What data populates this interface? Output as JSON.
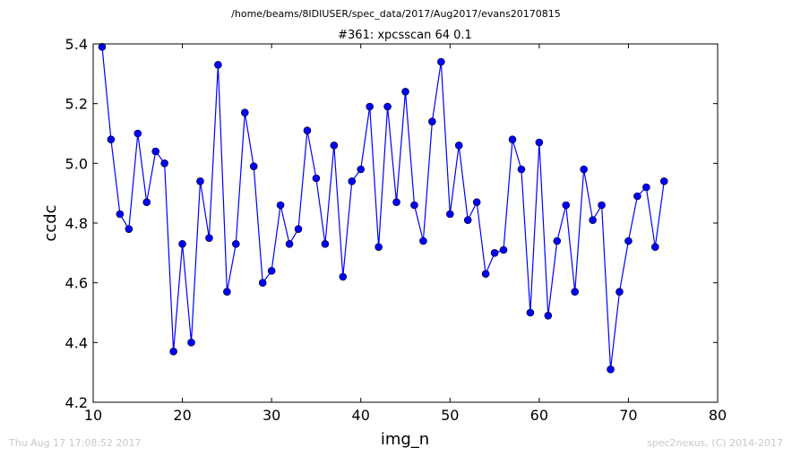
{
  "chart_data": {
    "type": "line",
    "suptitle": "/home/beams/8IDIUSER/spec_data/2017/Aug2017/evans20170815",
    "title": "#361: xpcsscan 64 0.1",
    "xlabel": "img_n",
    "ylabel": "ccdc",
    "xlim": [
      10,
      80
    ],
    "ylim": [
      4.2,
      5.4
    ],
    "xticks": [
      10,
      20,
      30,
      40,
      50,
      60,
      70,
      80
    ],
    "yticks": [
      4.2,
      4.4,
      4.6,
      4.8,
      5.0,
      5.2,
      5.4
    ],
    "ytick_labels": [
      "4.2",
      "4.4",
      "4.6",
      "4.8",
      "5.0",
      "5.2",
      "5.4"
    ],
    "grid": false,
    "line_color": "#0000ff",
    "marker": "circle",
    "x": [
      11,
      12,
      13,
      14,
      15,
      16,
      17,
      18,
      19,
      20,
      21,
      22,
      23,
      24,
      25,
      26,
      27,
      28,
      29,
      30,
      31,
      32,
      33,
      34,
      35,
      36,
      37,
      38,
      39,
      40,
      41,
      42,
      43,
      44,
      45,
      46,
      47,
      48,
      49,
      50,
      51,
      52,
      53,
      54,
      55,
      56,
      57,
      58,
      59,
      60,
      61,
      62,
      63,
      64,
      65,
      66,
      67,
      68,
      69,
      70,
      71,
      72,
      73,
      74
    ],
    "y": [
      5.39,
      5.08,
      4.83,
      4.78,
      5.1,
      4.87,
      5.04,
      5.0,
      4.37,
      4.73,
      4.4,
      4.94,
      4.75,
      5.33,
      4.57,
      4.73,
      5.17,
      4.99,
      4.6,
      4.64,
      4.86,
      4.73,
      4.78,
      5.11,
      4.95,
      4.73,
      5.06,
      4.62,
      4.94,
      4.98,
      5.19,
      4.72,
      5.19,
      4.87,
      5.24,
      4.86,
      4.74,
      5.14,
      5.34,
      4.83,
      5.06,
      4.81,
      4.87,
      4.63,
      4.7,
      4.71,
      5.08,
      4.98,
      4.5,
      5.07,
      4.49,
      4.74,
      4.86,
      4.57,
      4.98,
      4.81,
      4.86,
      4.31,
      4.57,
      4.74,
      4.89,
      4.92,
      4.72,
      4.94
    ]
  },
  "footer": {
    "timestamp": "Thu Aug 17 17:08:52 2017",
    "credit": "spec2nexus, (C) 2014-2017"
  }
}
